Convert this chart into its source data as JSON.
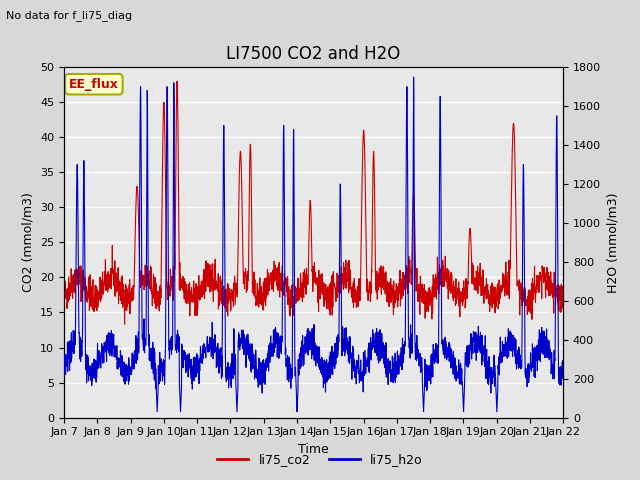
{
  "title": "LI7500 CO2 and H2O",
  "subtitle": "No data for f_li75_diag",
  "xlabel": "Time",
  "ylabel_left": "CO2 (mmol/m3)",
  "ylabel_right": "H2O (mmol/m3)",
  "ylim_left": [
    0,
    50
  ],
  "ylim_right": [
    0,
    1800
  ],
  "yticks_left": [
    0,
    5,
    10,
    15,
    20,
    25,
    30,
    35,
    40,
    45,
    50
  ],
  "yticks_right": [
    0,
    200,
    400,
    600,
    800,
    1000,
    1200,
    1400,
    1600,
    1800
  ],
  "xtick_labels": [
    "Jan 7",
    "Jan 8",
    "Jan 9",
    "Jan 10",
    "Jan 11",
    "Jan 12",
    "Jan 13",
    "Jan 14",
    "Jan 15",
    "Jan 16",
    "Jan 17",
    "Jan 18",
    "Jan 19",
    "Jan 20",
    "Jan 21",
    "Jan 22"
  ],
  "color_co2": "#cc0000",
  "color_h2o": "#0000cc",
  "legend_label_co2": "li75_co2",
  "legend_label_h2o": "li75_h2o",
  "annotation_text": "EE_flux",
  "annotation_box_color": "#ffffcc",
  "annotation_text_color": "#cc0000",
  "annotation_edge_color": "#aaaa00",
  "bg_color": "#d8d8d8",
  "plot_bg_color": "#e8e8e8",
  "grid_color": "white",
  "title_fontsize": 12,
  "axis_label_fontsize": 9,
  "tick_fontsize": 8,
  "legend_fontsize": 9,
  "subtitle_fontsize": 8,
  "seed": 42
}
